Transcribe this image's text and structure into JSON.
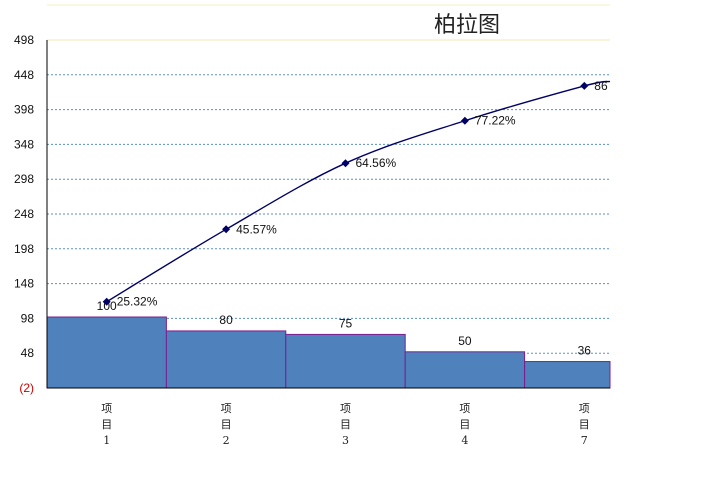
{
  "chart_data": {
    "type": "bar",
    "title": "柏拉图",
    "xlabel": "",
    "ylabel": "",
    "ylim": [
      -2,
      498
    ],
    "yticks": [
      "(2)",
      "48",
      "98",
      "148",
      "198",
      "248",
      "298",
      "348",
      "398",
      "448",
      "498"
    ],
    "ytick_values": [
      -2,
      48,
      98,
      148,
      198,
      248,
      298,
      348,
      398,
      448,
      498
    ],
    "grid": true,
    "categories": [
      "项\n目\n1",
      "项\n目\n2",
      "项\n目\n3",
      "项\n目\n4",
      "项\n目\n7"
    ],
    "series": [
      {
        "type": "bar",
        "values": [
          100,
          80,
          75,
          50,
          36
        ],
        "labels": [
          "100",
          "80",
          "75",
          "50",
          "36"
        ],
        "color": "#4f81bd"
      },
      {
        "type": "line",
        "values": [
          122,
          226,
          321,
          382,
          432
        ],
        "labels": [
          "25.32%",
          "45.57%",
          "64.56%",
          "77.22%",
          "86"
        ],
        "color": "#000066"
      }
    ]
  }
}
